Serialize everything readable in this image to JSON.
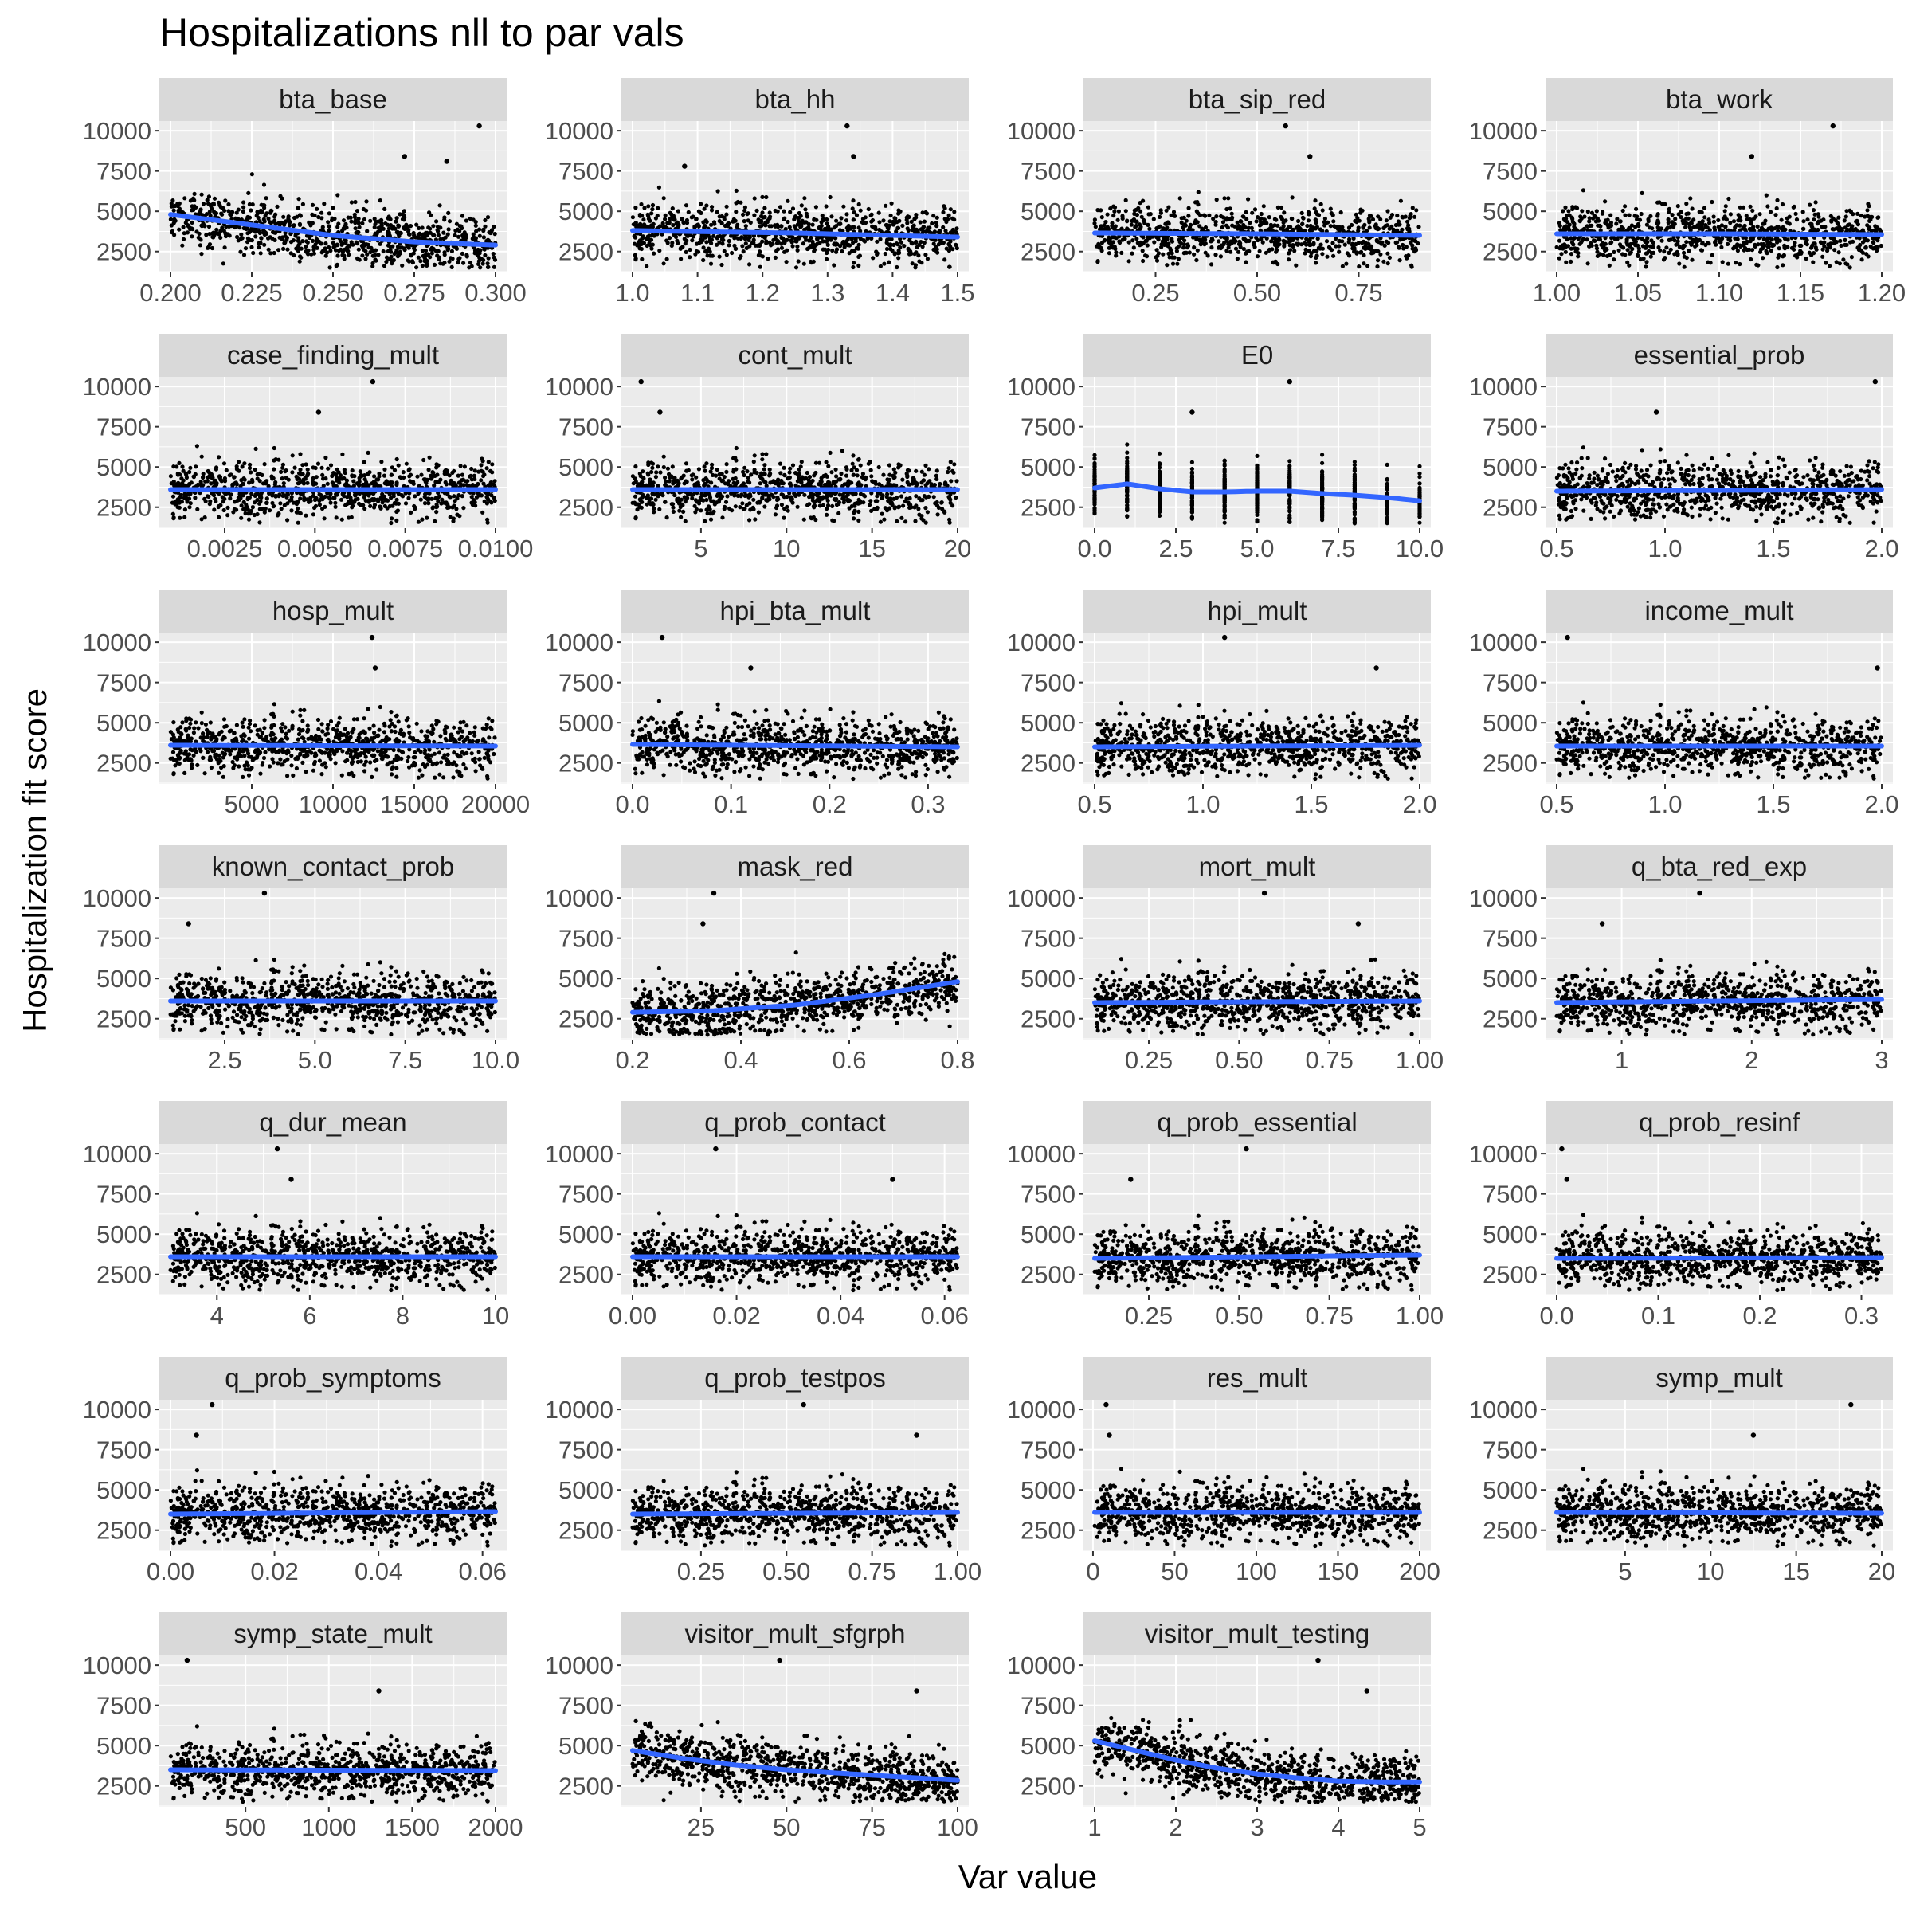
{
  "chart_data": {
    "type": "scatter",
    "title": "Hospitalizations nll to par vals",
    "xlabel": "Var value",
    "ylabel": "Hospitalization fit score",
    "ylim": [
      1200,
      10600
    ],
    "y_ticks": [
      "2500",
      "5000",
      "7500",
      "10000"
    ],
    "grid": true,
    "legend": "none",
    "colors": {
      "panel_bg": "#ebebeb",
      "strip_bg": "#d9d9d9",
      "grid": "#ffffff",
      "points": "#000000",
      "smooth": "#3366ff"
    },
    "panels": [
      {
        "name": "bta_base",
        "xlim": [
          0.2,
          0.3
        ],
        "x_ticks": [
          0.2,
          0.225,
          0.25,
          0.275,
          0.3
        ],
        "x_tick_labels": [
          "0.200",
          "0.225",
          "0.250",
          "0.275",
          "0.300"
        ],
        "smooth": [
          [
            0.2,
            4800
          ],
          [
            0.225,
            4150
          ],
          [
            0.25,
            3500
          ],
          [
            0.275,
            3100
          ],
          [
            0.3,
            2900
          ]
        ],
        "outliers": [
          [
            0.295,
            10300
          ],
          [
            0.272,
            8400
          ],
          [
            0.285,
            8100
          ]
        ]
      },
      {
        "name": "bta_hh",
        "xlim": [
          1.0,
          1.5
        ],
        "x_ticks": [
          1.0,
          1.1,
          1.2,
          1.3,
          1.4,
          1.5
        ],
        "x_tick_labels": [
          "1.0",
          "1.1",
          "1.2",
          "1.3",
          "1.4",
          "1.5"
        ],
        "smooth": [
          [
            1.0,
            3800
          ],
          [
            1.25,
            3650
          ],
          [
            1.5,
            3400
          ]
        ],
        "outliers": [
          [
            1.33,
            10300
          ],
          [
            1.34,
            8400
          ],
          [
            1.08,
            7800
          ]
        ]
      },
      {
        "name": "bta_sip_red",
        "xlim": [
          0.1,
          0.9
        ],
        "x_ticks": [
          0.25,
          0.5,
          0.75
        ],
        "x_tick_labels": [
          "0.25",
          "0.50",
          "0.75"
        ],
        "smooth": [
          [
            0.1,
            3650
          ],
          [
            0.5,
            3600
          ],
          [
            0.9,
            3500
          ]
        ],
        "outliers": [
          [
            0.57,
            10300
          ],
          [
            0.63,
            8400
          ]
        ]
      },
      {
        "name": "bta_work",
        "xlim": [
          1.0,
          1.2
        ],
        "x_ticks": [
          1.0,
          1.05,
          1.1,
          1.15,
          1.2
        ],
        "x_tick_labels": [
          "1.00",
          "1.05",
          "1.10",
          "1.15",
          "1.20"
        ],
        "smooth": [
          [
            1.0,
            3600
          ],
          [
            1.1,
            3600
          ],
          [
            1.2,
            3550
          ]
        ],
        "outliers": [
          [
            1.17,
            10300
          ],
          [
            1.12,
            8400
          ]
        ]
      },
      {
        "name": "case_finding_mult",
        "xlim": [
          0.001,
          0.01
        ],
        "x_ticks": [
          0.0025,
          0.005,
          0.0075,
          0.01
        ],
        "x_tick_labels": [
          "0.0025",
          "0.0050",
          "0.0075",
          "0.0100"
        ],
        "smooth": [
          [
            0.001,
            3600
          ],
          [
            0.01,
            3600
          ]
        ],
        "outliers": [
          [
            0.0066,
            10300
          ],
          [
            0.0051,
            8400
          ]
        ]
      },
      {
        "name": "cont_mult",
        "xlim": [
          1,
          20
        ],
        "x_ticks": [
          5,
          10,
          15,
          20
        ],
        "x_tick_labels": [
          "5",
          "10",
          "15",
          "20"
        ],
        "smooth": [
          [
            1,
            3600
          ],
          [
            20,
            3600
          ]
        ],
        "outliers": [
          [
            1.5,
            10300
          ],
          [
            2.6,
            8400
          ]
        ]
      },
      {
        "name": "E0",
        "xlim": [
          0,
          10
        ],
        "x_ticks": [
          0,
          2.5,
          5,
          7.5,
          10
        ],
        "x_tick_labels": [
          "0.0",
          "2.5",
          "5.0",
          "7.5",
          "10.0"
        ],
        "discrete": true,
        "smooth": [
          [
            0,
            3700
          ],
          [
            1,
            3950
          ],
          [
            2,
            3650
          ],
          [
            3,
            3450
          ],
          [
            4,
            3450
          ],
          [
            5,
            3500
          ],
          [
            6,
            3500
          ],
          [
            7,
            3350
          ],
          [
            8,
            3250
          ],
          [
            9,
            3100
          ],
          [
            10,
            2900
          ]
        ],
        "outliers": [
          [
            6,
            10300
          ],
          [
            3,
            8400
          ]
        ]
      },
      {
        "name": "essential_prob",
        "xlim": [
          0.5,
          2.0
        ],
        "x_ticks": [
          0.5,
          1.0,
          1.5,
          2.0
        ],
        "x_tick_labels": [
          "0.5",
          "1.0",
          "1.5",
          "2.0"
        ],
        "smooth": [
          [
            0.5,
            3500
          ],
          [
            2.0,
            3600
          ]
        ],
        "outliers": [
          [
            1.97,
            10300
          ],
          [
            0.96,
            8400
          ]
        ]
      },
      {
        "name": "hosp_mult",
        "xlim": [
          1,
          20000
        ],
        "x_ticks": [
          5000,
          10000,
          15000,
          20000
        ],
        "x_tick_labels": [
          "5000",
          "10000",
          "15000",
          "20000"
        ],
        "smooth": [
          [
            1,
            3600
          ],
          [
            20000,
            3550
          ]
        ],
        "outliers": [
          [
            12400,
            10300
          ],
          [
            12600,
            8400
          ]
        ]
      },
      {
        "name": "hpi_bta_mult",
        "xlim": [
          0,
          0.33
        ],
        "x_ticks": [
          0,
          0.1,
          0.2,
          0.3
        ],
        "x_tick_labels": [
          "0.0",
          "0.1",
          "0.2",
          "0.3"
        ],
        "smooth": [
          [
            0,
            3650
          ],
          [
            0.33,
            3500
          ]
        ],
        "outliers": [
          [
            0.03,
            10300
          ],
          [
            0.12,
            8400
          ]
        ]
      },
      {
        "name": "hpi_mult",
        "xlim": [
          0.5,
          2.0
        ],
        "x_ticks": [
          0.5,
          1.0,
          1.5,
          2.0
        ],
        "x_tick_labels": [
          "0.5",
          "1.0",
          "1.5",
          "2.0"
        ],
        "smooth": [
          [
            0.5,
            3500
          ],
          [
            2.0,
            3600
          ]
        ],
        "outliers": [
          [
            1.1,
            10300
          ],
          [
            1.8,
            8400
          ]
        ]
      },
      {
        "name": "income_mult",
        "xlim": [
          0.5,
          2.0
        ],
        "x_ticks": [
          0.5,
          1.0,
          1.5,
          2.0
        ],
        "x_tick_labels": [
          "0.5",
          "1.0",
          "1.5",
          "2.0"
        ],
        "smooth": [
          [
            0.5,
            3550
          ],
          [
            2.0,
            3550
          ]
        ],
        "outliers": [
          [
            0.55,
            10300
          ],
          [
            1.98,
            8400
          ]
        ]
      },
      {
        "name": "known_contact_prob",
        "xlim": [
          1,
          10
        ],
        "x_ticks": [
          2.5,
          5,
          7.5,
          10
        ],
        "x_tick_labels": [
          "2.5",
          "5.0",
          "7.5",
          "10.0"
        ],
        "smooth": [
          [
            1,
            3600
          ],
          [
            10,
            3600
          ]
        ],
        "outliers": [
          [
            3.6,
            10300
          ],
          [
            1.5,
            8400
          ]
        ]
      },
      {
        "name": "mask_red",
        "xlim": [
          0.2,
          0.8
        ],
        "x_ticks": [
          0.2,
          0.4,
          0.6,
          0.8
        ],
        "x_tick_labels": [
          "0.2",
          "0.4",
          "0.6",
          "0.8"
        ],
        "smooth": [
          [
            0.2,
            2900
          ],
          [
            0.35,
            3000
          ],
          [
            0.5,
            3350
          ],
          [
            0.65,
            4000
          ],
          [
            0.8,
            4800
          ]
        ],
        "outliers": [
          [
            0.35,
            10300
          ],
          [
            0.33,
            8400
          ]
        ]
      },
      {
        "name": "mort_mult",
        "xlim": [
          0.1,
          1.0
        ],
        "x_ticks": [
          0.25,
          0.5,
          0.75,
          1.0
        ],
        "x_tick_labels": [
          "0.25",
          "0.50",
          "0.75",
          "1.00"
        ],
        "smooth": [
          [
            0.1,
            3500
          ],
          [
            1.0,
            3600
          ]
        ],
        "outliers": [
          [
            0.57,
            10300
          ],
          [
            0.83,
            8400
          ]
        ]
      },
      {
        "name": "q_bta_red_exp",
        "xlim": [
          0.5,
          3.0
        ],
        "x_ticks": [
          1,
          2,
          3
        ],
        "x_tick_labels": [
          "1",
          "2",
          "3"
        ],
        "smooth": [
          [
            0.5,
            3500
          ],
          [
            3.0,
            3700
          ]
        ],
        "outliers": [
          [
            1.6,
            10300
          ],
          [
            0.85,
            8400
          ]
        ]
      },
      {
        "name": "q_dur_mean",
        "xlim": [
          3,
          10
        ],
        "x_ticks": [
          4,
          6,
          8,
          10
        ],
        "x_tick_labels": [
          "4",
          "6",
          "8",
          "10"
        ],
        "smooth": [
          [
            3,
            3600
          ],
          [
            10,
            3600
          ]
        ],
        "outliers": [
          [
            5.3,
            10300
          ],
          [
            5.6,
            8400
          ]
        ]
      },
      {
        "name": "q_prob_contact",
        "xlim": [
          0,
          0.0625
        ],
        "x_ticks": [
          0,
          0.02,
          0.04,
          0.06
        ],
        "x_tick_labels": [
          "0.00",
          "0.02",
          "0.04",
          "0.06"
        ],
        "smooth": [
          [
            0,
            3600
          ],
          [
            0.0625,
            3600
          ]
        ],
        "outliers": [
          [
            0.016,
            10300
          ],
          [
            0.05,
            8400
          ]
        ]
      },
      {
        "name": "q_prob_essential",
        "xlim": [
          0.1,
          1.0
        ],
        "x_ticks": [
          0.25,
          0.5,
          0.75,
          1.0
        ],
        "x_tick_labels": [
          "0.25",
          "0.50",
          "0.75",
          "1.00"
        ],
        "smooth": [
          [
            0.1,
            3500
          ],
          [
            1.0,
            3700
          ]
        ],
        "outliers": [
          [
            0.52,
            10300
          ],
          [
            0.2,
            8400
          ]
        ]
      },
      {
        "name": "q_prob_resinf",
        "xlim": [
          0,
          0.32
        ],
        "x_ticks": [
          0,
          0.1,
          0.2,
          0.3
        ],
        "x_tick_labels": [
          "0.0",
          "0.1",
          "0.2",
          "0.3"
        ],
        "smooth": [
          [
            0,
            3500
          ],
          [
            0.32,
            3550
          ]
        ],
        "outliers": [
          [
            0.005,
            10300
          ],
          [
            0.01,
            8400
          ]
        ]
      },
      {
        "name": "q_prob_symptoms",
        "xlim": [
          0,
          0.0625
        ],
        "x_ticks": [
          0,
          0.02,
          0.04,
          0.06
        ],
        "x_tick_labels": [
          "0.00",
          "0.02",
          "0.04",
          "0.06"
        ],
        "smooth": [
          [
            0,
            3500
          ],
          [
            0.0625,
            3650
          ]
        ],
        "outliers": [
          [
            0.008,
            10300
          ],
          [
            0.005,
            8400
          ]
        ]
      },
      {
        "name": "q_prob_testpos",
        "xlim": [
          0.05,
          1.0
        ],
        "x_ticks": [
          0.25,
          0.5,
          0.75,
          1.0
        ],
        "x_tick_labels": [
          "0.25",
          "0.50",
          "0.75",
          "1.00"
        ],
        "smooth": [
          [
            0.05,
            3500
          ],
          [
            1.0,
            3600
          ]
        ],
        "outliers": [
          [
            0.55,
            10300
          ],
          [
            0.88,
            8400
          ]
        ]
      },
      {
        "name": "res_mult",
        "xlim": [
          1,
          200
        ],
        "x_ticks": [
          0,
          50,
          100,
          150,
          200
        ],
        "x_tick_labels": [
          "0",
          "50",
          "100",
          "150",
          "200"
        ],
        "smooth": [
          [
            1,
            3600
          ],
          [
            200,
            3600
          ]
        ],
        "outliers": [
          [
            8,
            10300
          ],
          [
            10,
            8400
          ]
        ]
      },
      {
        "name": "symp_mult",
        "xlim": [
          1,
          20
        ],
        "x_ticks": [
          5,
          10,
          15,
          20
        ],
        "x_tick_labels": [
          "5",
          "10",
          "15",
          "20"
        ],
        "smooth": [
          [
            1,
            3600
          ],
          [
            20,
            3550
          ]
        ],
        "outliers": [
          [
            18.2,
            10300
          ],
          [
            12.5,
            8400
          ]
        ]
      },
      {
        "name": "symp_state_mult",
        "xlim": [
          50,
          2000
        ],
        "x_ticks": [
          500,
          1000,
          1500,
          2000
        ],
        "x_tick_labels": [
          "500",
          "1000",
          "1500",
          "2000"
        ],
        "smooth": [
          [
            50,
            3500
          ],
          [
            2000,
            3450
          ]
        ],
        "outliers": [
          [
            150,
            10300
          ],
          [
            1300,
            8400
          ]
        ]
      },
      {
        "name": "visitor_mult_sfgrph",
        "xlim": [
          5,
          100
        ],
        "x_ticks": [
          25,
          50,
          75,
          100
        ],
        "x_tick_labels": [
          "25",
          "50",
          "75",
          "100"
        ],
        "smooth": [
          [
            5,
            4700
          ],
          [
            20,
            4200
          ],
          [
            35,
            3800
          ],
          [
            50,
            3500
          ],
          [
            65,
            3300
          ],
          [
            80,
            3100
          ],
          [
            100,
            2850
          ]
        ],
        "outliers": [
          [
            48,
            10300
          ],
          [
            88,
            8400
          ]
        ]
      },
      {
        "name": "visitor_mult_testing",
        "xlim": [
          1,
          5
        ],
        "x_ticks": [
          1,
          2,
          3,
          4,
          5
        ],
        "x_tick_labels": [
          "1",
          "2",
          "3",
          "4",
          "5"
        ],
        "smooth": [
          [
            1,
            5300
          ],
          [
            1.5,
            4700
          ],
          [
            2,
            4100
          ],
          [
            2.5,
            3600
          ],
          [
            3,
            3250
          ],
          [
            3.5,
            3000
          ],
          [
            4,
            2800
          ],
          [
            4.5,
            2750
          ],
          [
            5,
            2750
          ]
        ],
        "outliers": [
          [
            3.75,
            10300
          ],
          [
            4.35,
            8400
          ]
        ]
      }
    ]
  }
}
